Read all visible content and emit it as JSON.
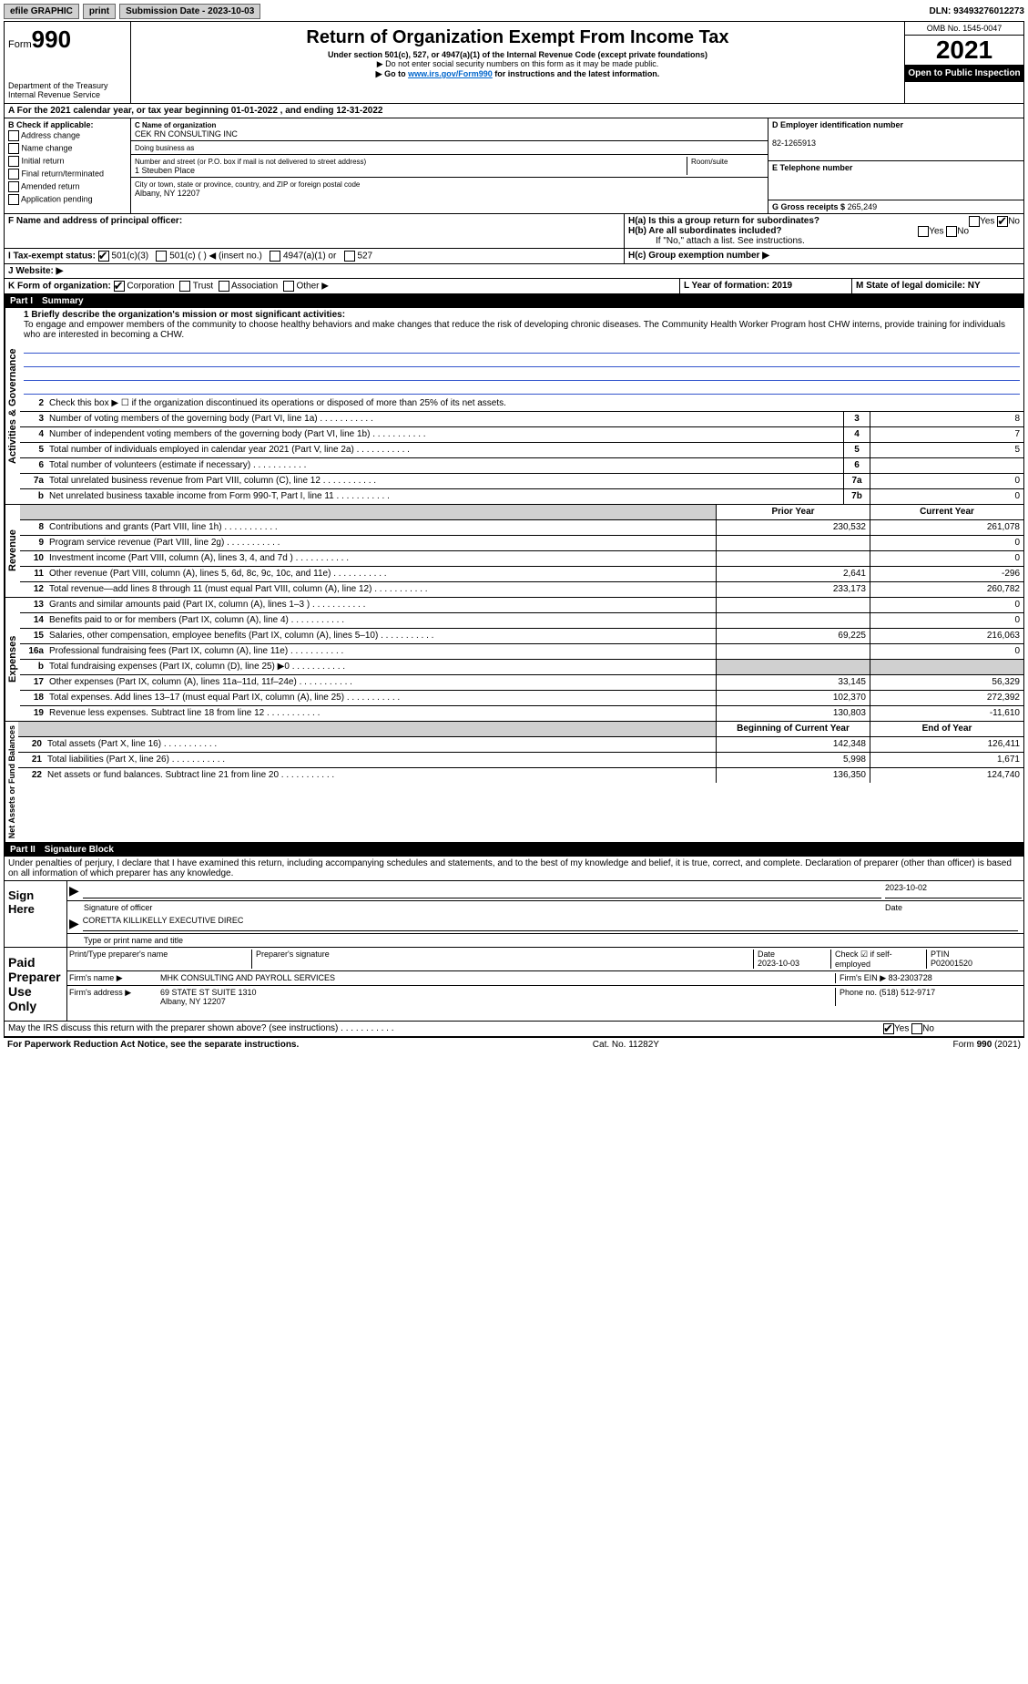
{
  "topbar": {
    "efile": "efile GRAPHIC",
    "print": "print",
    "submission_label": "Submission Date - 2023-10-03",
    "dln": "DLN: 93493276012273"
  },
  "header": {
    "form_prefix": "Form",
    "form_num": "990",
    "dept": "Department of the Treasury",
    "irs": "Internal Revenue Service",
    "title": "Return of Organization Exempt From Income Tax",
    "subtitle": "Under section 501(c), 527, or 4947(a)(1) of the Internal Revenue Code (except private foundations)",
    "note1": "▶ Do not enter social security numbers on this form as it may be made public.",
    "note2_pre": "▶ Go to ",
    "note2_link": "www.irs.gov/Form990",
    "note2_post": " for instructions and the latest information.",
    "omb": "OMB No. 1545-0047",
    "year": "2021",
    "open": "Open to Public Inspection"
  },
  "A": {
    "text": "A For the 2021 calendar year, or tax year beginning 01-01-2022   , and ending 12-31-2022"
  },
  "B": {
    "label": "B Check if applicable:",
    "items": [
      "Address change",
      "Name change",
      "Initial return",
      "Final return/terminated",
      "Amended return",
      "Application pending"
    ]
  },
  "C": {
    "name_label": "C Name of organization",
    "name": "CEK RN CONSULTING INC",
    "dba_label": "Doing business as",
    "addr_label": "Number and street (or P.O. box if mail is not delivered to street address)",
    "room_label": "Room/suite",
    "addr": "1 Steuben Place",
    "city_label": "City or town, state or province, country, and ZIP or foreign postal code",
    "city": "Albany, NY  12207"
  },
  "D": {
    "label": "D Employer identification number",
    "value": "82-1265913"
  },
  "E": {
    "label": "E Telephone number",
    "value": ""
  },
  "G": {
    "label": "G Gross receipts $",
    "value": "265,249"
  },
  "F": {
    "label": "F  Name and address of principal officer:"
  },
  "H": {
    "a": "H(a)  Is this a group return for subordinates?",
    "b": "H(b)  Are all subordinates included?",
    "b_note": "If \"No,\" attach a list. See instructions.",
    "c": "H(c)  Group exemption number ▶",
    "yes": "Yes",
    "no": "No"
  },
  "I": {
    "label": "I  Tax-exempt status:",
    "opts": [
      "501(c)(3)",
      "501(c) (  ) ◀ (insert no.)",
      "4947(a)(1) or",
      "527"
    ]
  },
  "J": {
    "label": "J  Website: ▶"
  },
  "K": {
    "label": "K Form of organization:",
    "opts": [
      "Corporation",
      "Trust",
      "Association",
      "Other ▶"
    ]
  },
  "L": {
    "label": "L Year of formation: 2019"
  },
  "M": {
    "label": "M State of legal domicile: NY"
  },
  "parts": {
    "p1": "Part I",
    "p1_title": "Summary",
    "p2": "Part II",
    "p2_title": "Signature Block"
  },
  "summary": {
    "l1_label": "1  Briefly describe the organization's mission or most significant activities:",
    "l1_text": "To engage and empower members of the community to choose healthy behaviors and make changes that reduce the risk of developing chronic diseases. The Community Health Worker Program host CHW interns, provide training for individuals who are interested in becoming a CHW.",
    "l2": "Check this box ▶ ☐  if the organization discontinued its operations or disposed of more than 25% of its net assets.",
    "lines_gov": [
      {
        "n": "3",
        "d": "Number of voting members of the governing body (Part VI, line 1a)",
        "c": "3",
        "v": "8"
      },
      {
        "n": "4",
        "d": "Number of independent voting members of the governing body (Part VI, line 1b)",
        "c": "4",
        "v": "7"
      },
      {
        "n": "5",
        "d": "Total number of individuals employed in calendar year 2021 (Part V, line 2a)",
        "c": "5",
        "v": "5"
      },
      {
        "n": "6",
        "d": "Total number of volunteers (estimate if necessary)",
        "c": "6",
        "v": ""
      },
      {
        "n": "7a",
        "d": "Total unrelated business revenue from Part VIII, column (C), line 12",
        "c": "7a",
        "v": "0"
      },
      {
        "n": "b",
        "d": "Net unrelated business taxable income from Form 990-T, Part I, line 11",
        "c": "7b",
        "v": "0"
      }
    ],
    "col_prior": "Prior Year",
    "col_current": "Current Year",
    "lines_rev": [
      {
        "n": "8",
        "d": "Contributions and grants (Part VIII, line 1h)",
        "p": "230,532",
        "v": "261,078"
      },
      {
        "n": "9",
        "d": "Program service revenue (Part VIII, line 2g)",
        "p": "",
        "v": "0"
      },
      {
        "n": "10",
        "d": "Investment income (Part VIII, column (A), lines 3, 4, and 7d )",
        "p": "",
        "v": "0"
      },
      {
        "n": "11",
        "d": "Other revenue (Part VIII, column (A), lines 5, 6d, 8c, 9c, 10c, and 11e)",
        "p": "2,641",
        "v": "-296"
      },
      {
        "n": "12",
        "d": "Total revenue—add lines 8 through 11 (must equal Part VIII, column (A), line 12)",
        "p": "233,173",
        "v": "260,782"
      }
    ],
    "lines_exp": [
      {
        "n": "13",
        "d": "Grants and similar amounts paid (Part IX, column (A), lines 1–3 )",
        "p": "",
        "v": "0"
      },
      {
        "n": "14",
        "d": "Benefits paid to or for members (Part IX, column (A), line 4)",
        "p": "",
        "v": "0"
      },
      {
        "n": "15",
        "d": "Salaries, other compensation, employee benefits (Part IX, column (A), lines 5–10)",
        "p": "69,225",
        "v": "216,063"
      },
      {
        "n": "16a",
        "d": "Professional fundraising fees (Part IX, column (A), line 11e)",
        "p": "",
        "v": "0"
      },
      {
        "n": "b",
        "d": "Total fundraising expenses (Part IX, column (D), line 25) ▶0",
        "p": "GRAY",
        "v": "GRAY"
      },
      {
        "n": "17",
        "d": "Other expenses (Part IX, column (A), lines 11a–11d, 11f–24e)",
        "p": "33,145",
        "v": "56,329"
      },
      {
        "n": "18",
        "d": "Total expenses. Add lines 13–17 (must equal Part IX, column (A), line 25)",
        "p": "102,370",
        "v": "272,392"
      },
      {
        "n": "19",
        "d": "Revenue less expenses. Subtract line 18 from line 12",
        "p": "130,803",
        "v": "-11,610"
      }
    ],
    "col_begin": "Beginning of Current Year",
    "col_end": "End of Year",
    "lines_net": [
      {
        "n": "20",
        "d": "Total assets (Part X, line 16)",
        "p": "142,348",
        "v": "126,411"
      },
      {
        "n": "21",
        "d": "Total liabilities (Part X, line 26)",
        "p": "5,998",
        "v": "1,671"
      },
      {
        "n": "22",
        "d": "Net assets or fund balances. Subtract line 21 from line 20",
        "p": "136,350",
        "v": "124,740"
      }
    ]
  },
  "tabs": {
    "gov": "Activities & Governance",
    "rev": "Revenue",
    "exp": "Expenses",
    "net": "Net Assets or Fund Balances"
  },
  "sig": {
    "declaration": "Under penalties of perjury, I declare that I have examined this return, including accompanying schedules and statements, and to the best of my knowledge and belief, it is true, correct, and complete. Declaration of preparer (other than officer) is based on all information of which preparer has any knowledge.",
    "sign_here": "Sign Here",
    "sig_officer": "Signature of officer",
    "date": "Date",
    "sig_date": "2023-10-02",
    "name_title": "CORETTA KILLIKELLY  EXECUTIVE DIREC",
    "name_label": "Type or print name and title",
    "paid": "Paid Preparer Use Only",
    "prep_name_label": "Print/Type preparer's name",
    "prep_sig_label": "Preparer's signature",
    "prep_date_label": "Date",
    "prep_date": "2023-10-03",
    "self_emp": "Check ☑ if self-employed",
    "ptin_label": "PTIN",
    "ptin": "P02001520",
    "firm_name_label": "Firm's name    ▶",
    "firm_name": "MHK CONSULTING AND PAYROLL SERVICES",
    "firm_ein_label": "Firm's EIN ▶",
    "firm_ein": "83-2303728",
    "firm_addr_label": "Firm's address ▶",
    "firm_addr": "69 STATE ST SUITE 1310",
    "firm_city": "Albany, NY  12207",
    "phone_label": "Phone no.",
    "phone": "(518) 512-9717",
    "discuss": "May the IRS discuss this return with the preparer shown above? (see instructions)"
  },
  "footer": {
    "pra": "For Paperwork Reduction Act Notice, see the separate instructions.",
    "cat": "Cat. No. 11282Y",
    "form": "Form 990 (2021)"
  }
}
